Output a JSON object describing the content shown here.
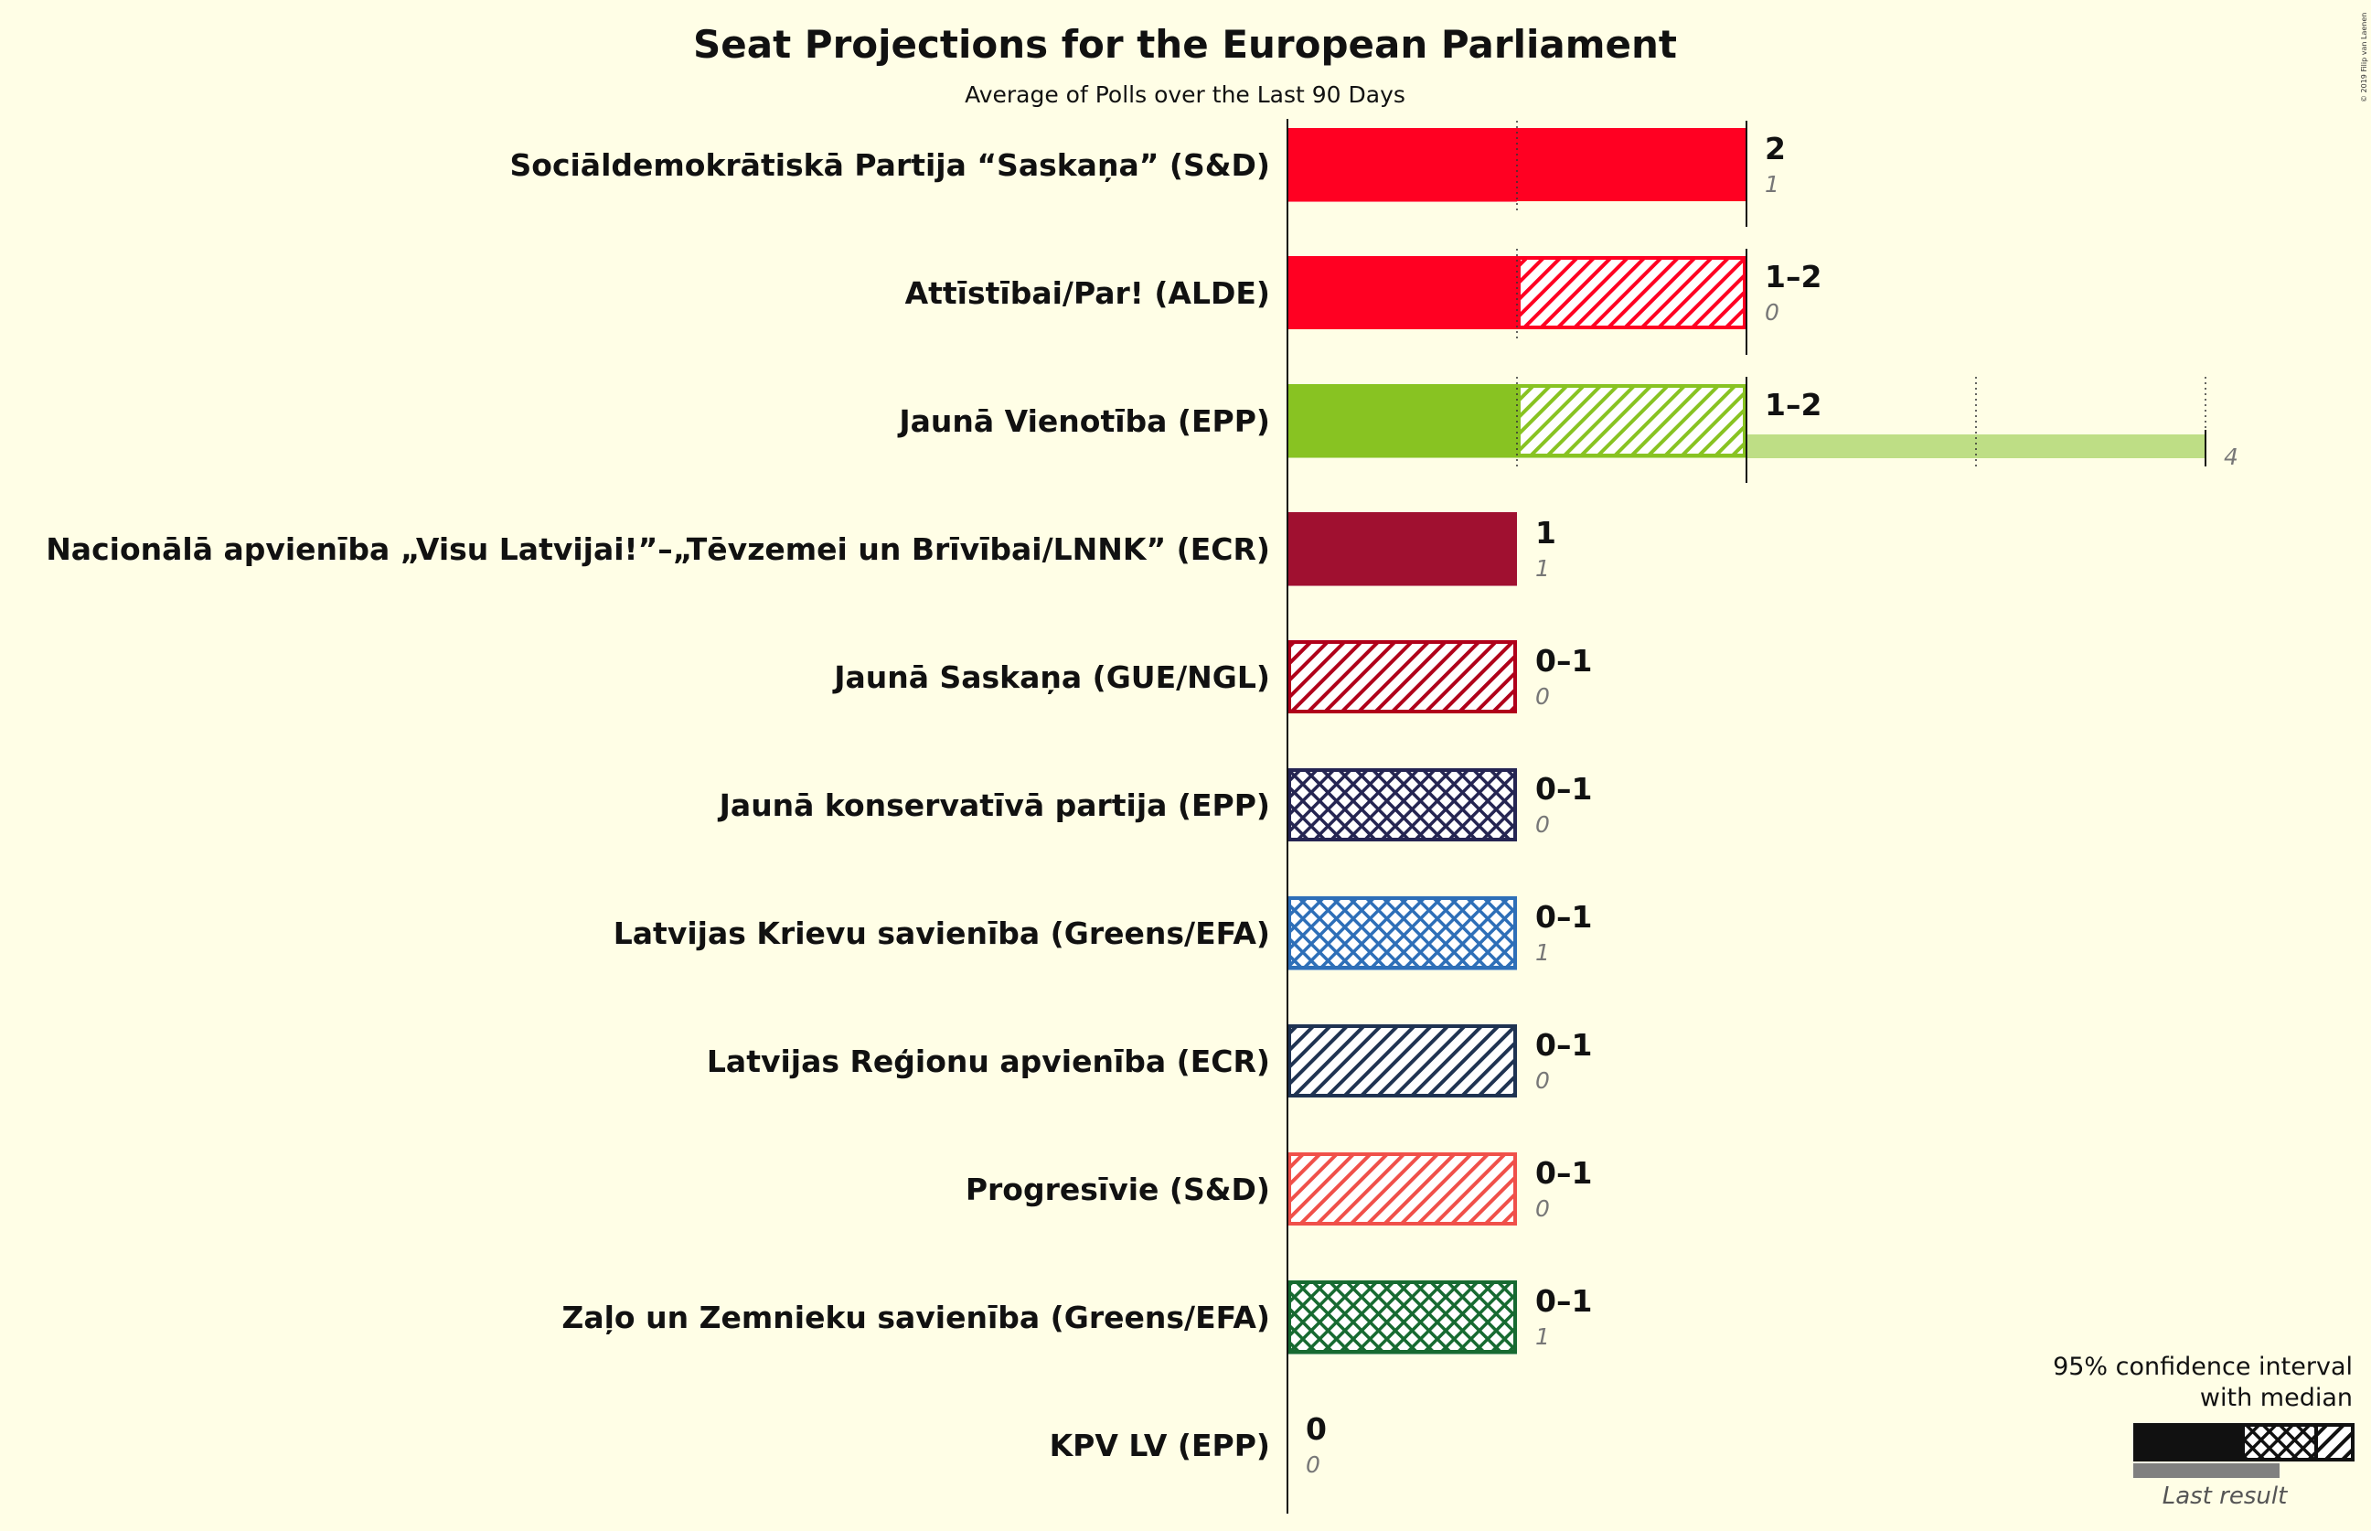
{
  "title": "Seat Projections for the European Parliament",
  "subtitle": "Average of Polls over the Last 90 Days",
  "credit": "© 2019 Filip van Laenen",
  "legend": {
    "line1": "95% confidence interval",
    "line2": "with median",
    "last_result": "Last result"
  },
  "chart_data": {
    "type": "bar",
    "orientation": "horizontal",
    "x_unit": "seats",
    "series": [
      {
        "party": "Sociāldemokrātiskā Partija “Saskaņa” (S&D)",
        "low": 2,
        "median": 2,
        "high": 2,
        "label": "2",
        "last": 1,
        "last_label": "1",
        "color": "#FF0022"
      },
      {
        "party": "Attīstībai/Par! (ALDE)",
        "low": 1,
        "median": 1,
        "high": 2,
        "label": "1–2",
        "last": 0,
        "last_label": "0",
        "color": "#FF0022"
      },
      {
        "party": "Jaunā Vienotība (EPP)",
        "low": 1,
        "median": 1,
        "high": 2,
        "label": "1–2",
        "last": 4,
        "last_label": "4",
        "color": "#88C322"
      },
      {
        "party": "Nacionālā apvienība „Visu Latvijai!”–„Tēvzemei un Brīvībai/LNNK” (ECR)",
        "low": 1,
        "median": 1,
        "high": 1,
        "label": "1",
        "last": 1,
        "last_label": "1",
        "color": "#A01030"
      },
      {
        "party": "Jaunā Saskaņa (GUE/NGL)",
        "low": 0,
        "median": 0,
        "high": 1,
        "label": "0–1",
        "last": 0,
        "last_label": "0",
        "color": "#B0001A"
      },
      {
        "party": "Jaunā konservatīvā partija (EPP)",
        "low": 0,
        "median": 0,
        "high": 1,
        "label": "0–1",
        "last": 0,
        "last_label": "0",
        "color": "#252552"
      },
      {
        "party": "Latvijas Krievu savienība (Greens/EFA)",
        "low": 0,
        "median": 0,
        "high": 1,
        "label": "0–1",
        "last": 1,
        "last_label": "1",
        "color": "#2E6FB8"
      },
      {
        "party": "Latvijas Reģionu apvienība (ECR)",
        "low": 0,
        "median": 0,
        "high": 1,
        "label": "0–1",
        "last": 0,
        "last_label": "0",
        "color": "#1F3352"
      },
      {
        "party": "Progresīvie (S&D)",
        "low": 0,
        "median": 0,
        "high": 1,
        "label": "0–1",
        "last": 0,
        "last_label": "0",
        "color": "#F0504A"
      },
      {
        "party": "Zaļo un Zemnieku savienība (Greens/EFA)",
        "low": 0,
        "median": 0,
        "high": 1,
        "label": "0–1",
        "last": 1,
        "last_label": "1",
        "color": "#176A31"
      },
      {
        "party": "KPV LV (EPP)",
        "low": 0,
        "median": 0,
        "high": 0,
        "label": "0",
        "last": 0,
        "last_label": "0",
        "color": "#333333"
      }
    ]
  }
}
